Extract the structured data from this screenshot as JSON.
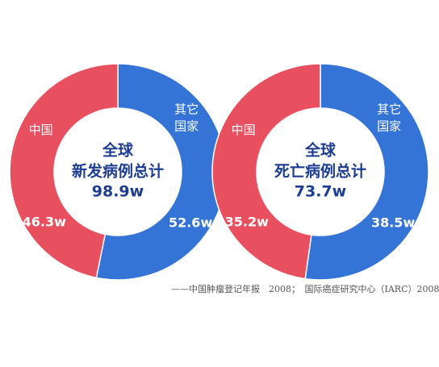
{
  "chart_data": [
    {
      "type": "donut",
      "categories": [
        "中国",
        "其它国家"
      ],
      "values": [
        46.3,
        52.6
      ],
      "value_labels": [
        "46.3w",
        "52.6w"
      ],
      "colors": [
        "#e9505f",
        "#3474d6"
      ],
      "center_text": [
        "全球",
        "新发病例总计"
      ],
      "center_total": "98.9w"
    },
    {
      "type": "donut",
      "categories": [
        "中国",
        "其它国家"
      ],
      "values": [
        35.2,
        38.5
      ],
      "value_labels": [
        "35.2w",
        "38.5w"
      ],
      "colors": [
        "#e9505f",
        "#3474d6"
      ],
      "center_text": [
        "全球",
        "死亡病例总计"
      ],
      "center_total": "73.7w"
    }
  ],
  "source": "——中国肿瘤登记年报　2008；　国际癌症研究中心（IARC）2008"
}
